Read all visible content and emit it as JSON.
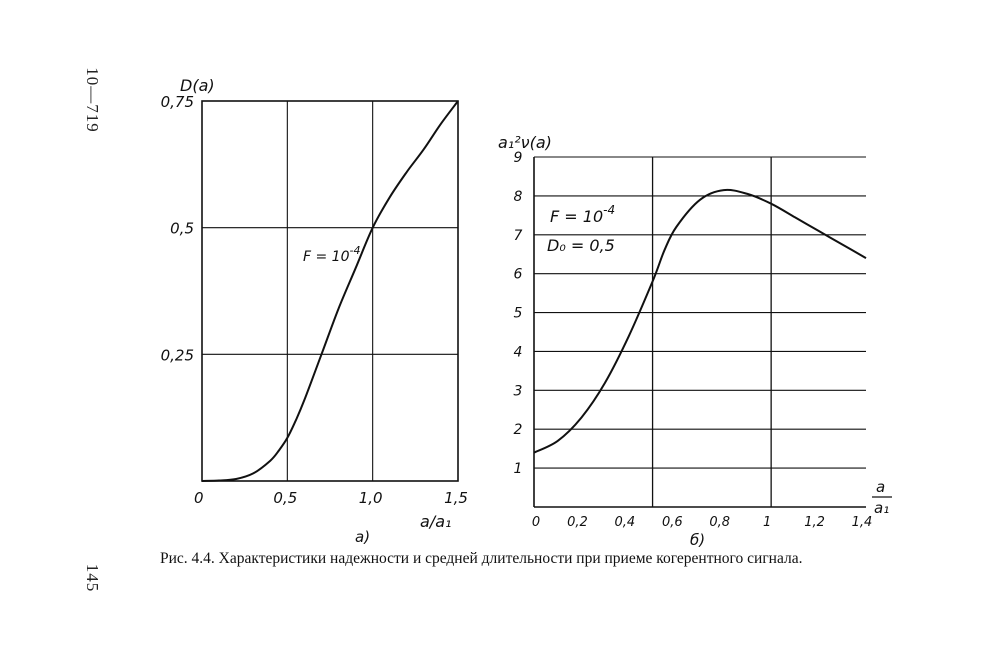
{
  "page": {
    "side_number_top": "10—719",
    "side_number_bottom": "145",
    "caption": "Рис. 4.4. Характеристики надежности и средней длительности при приеме когерентного сигнала."
  },
  "chart_data": [
    {
      "type": "line",
      "panel_label": "а)",
      "ylabel": "D(a)",
      "xlabel": "a/a₁",
      "xlim": [
        0,
        1.5
      ],
      "ylim": [
        0,
        0.75
      ],
      "x_ticks": [
        "0",
        "0,5",
        "1,0",
        "1,5"
      ],
      "y_ticks": [
        "0,25",
        "0,5",
        "0,75"
      ],
      "grid": true,
      "annotations": [
        {
          "text": "F = 10",
          "superscript": "-4"
        }
      ],
      "series": [
        {
          "x": [
            0,
            0.1,
            0.2,
            0.3,
            0.4,
            0.45,
            0.5,
            0.55,
            0.6,
            0.7,
            0.8,
            0.9,
            1.0,
            1.1,
            1.2,
            1.3,
            1.4,
            1.5
          ],
          "y": [
            0,
            0.001,
            0.004,
            0.015,
            0.04,
            0.06,
            0.085,
            0.12,
            0.16,
            0.25,
            0.34,
            0.42,
            0.5,
            0.56,
            0.61,
            0.655,
            0.705,
            0.75
          ]
        }
      ]
    },
    {
      "type": "line",
      "panel_label": "б)",
      "ylabel": "a₁²ν(a)",
      "xlabel": "a/a₁",
      "xlim": [
        0,
        1.4
      ],
      "ylim": [
        0,
        9
      ],
      "x_ticks": [
        "0",
        "0,2",
        "0,4",
        "0,6",
        "0,8",
        "1",
        "1,2",
        "1,4"
      ],
      "y_ticks": [
        "1",
        "2",
        "3",
        "4",
        "5",
        "6",
        "7",
        "8",
        "9"
      ],
      "grid": true,
      "annotations": [
        {
          "text": "F = 10",
          "superscript": "-4"
        },
        {
          "text": "D₀ = 0,5"
        }
      ],
      "series": [
        {
          "x": [
            0,
            0.1,
            0.2,
            0.3,
            0.4,
            0.5,
            0.55,
            0.6,
            0.7,
            0.8,
            0.9,
            1.0,
            1.1,
            1.2,
            1.3,
            1.4
          ],
          "y": [
            1.4,
            1.7,
            2.3,
            3.2,
            4.4,
            5.8,
            6.6,
            7.2,
            7.9,
            8.15,
            8.05,
            7.8,
            7.45,
            7.1,
            6.75,
            6.4
          ]
        }
      ]
    }
  ]
}
